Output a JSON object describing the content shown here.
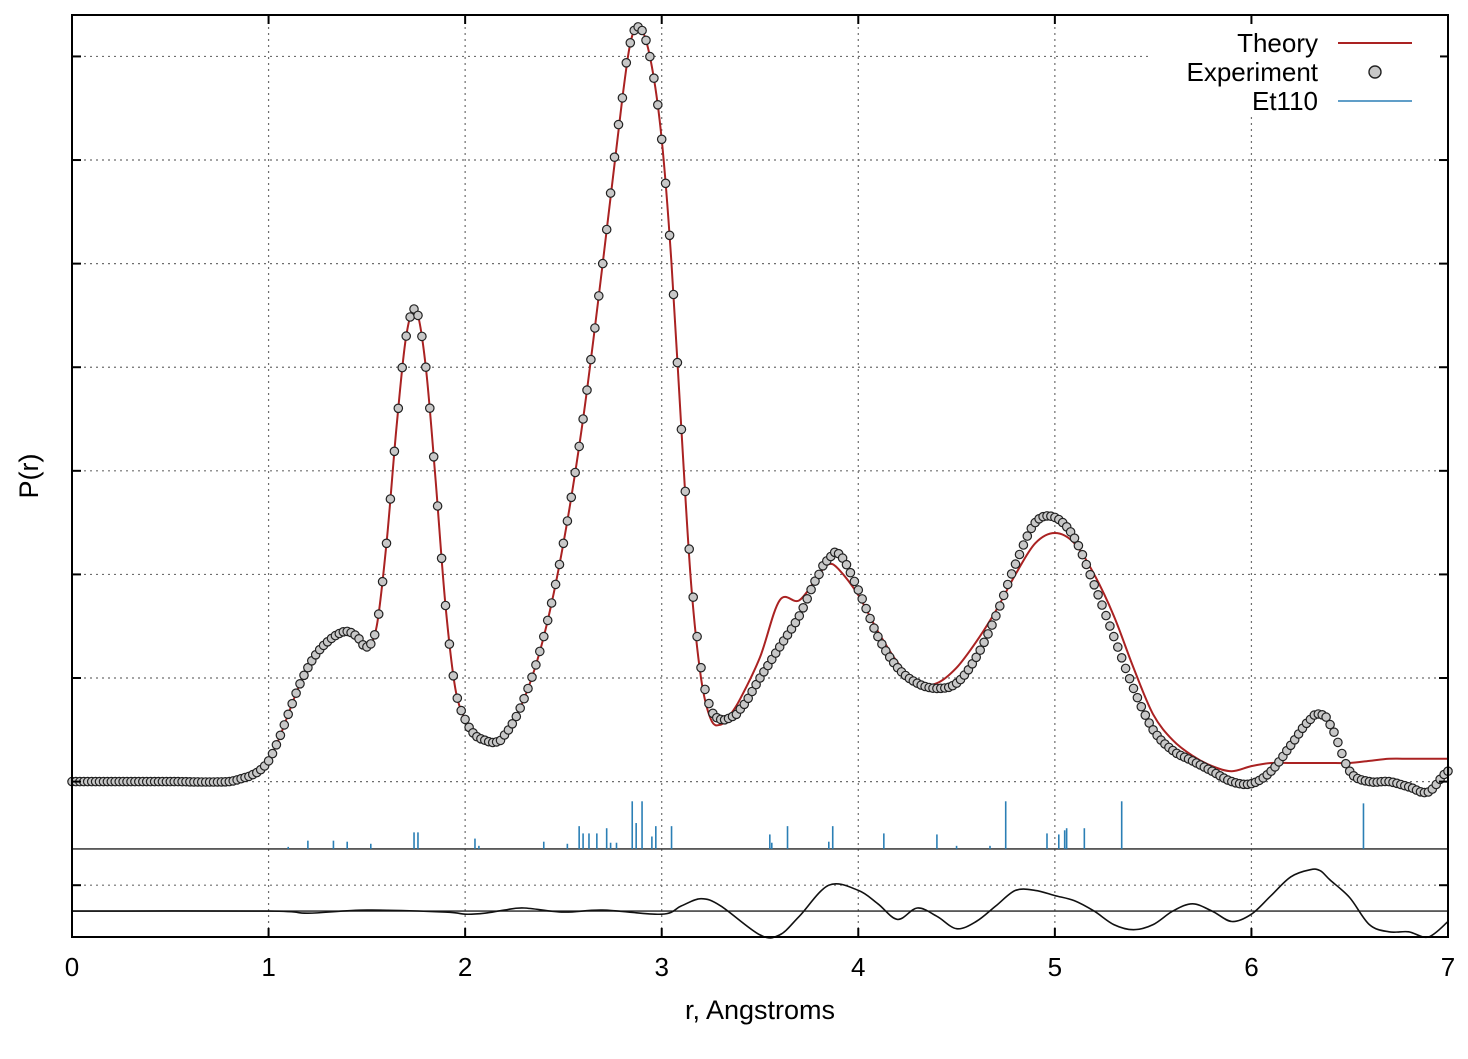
{
  "chart_data": {
    "type": "line",
    "title": "",
    "xlabel": "r, Angstroms",
    "ylabel": "P(r)",
    "xlim": [
      0,
      7
    ],
    "ylim": [
      -0.5,
      8.4
    ],
    "x_ticks": [
      0,
      1,
      2,
      3,
      4,
      5,
      6,
      7
    ],
    "y_ticks": [
      0,
      1,
      2,
      3,
      4,
      5,
      6,
      7,
      8
    ],
    "y_tick_labels_shown": false,
    "grid": true,
    "legend_position": "top-right",
    "legend": [
      {
        "label": "Theory",
        "style": "line",
        "color": "#aa2222"
      },
      {
        "label": "Experiment",
        "style": "marker",
        "color": "#c8c8c8"
      },
      {
        "label": "Et110",
        "style": "line",
        "color": "#2b7fb5"
      }
    ],
    "colors": {
      "theory": "#aa2222",
      "experiment_fill": "#c8c8c8",
      "experiment_edge": "#222222",
      "sticks": "#2b7fb5",
      "difference": "#111111"
    },
    "series": [
      {
        "name": "Experiment",
        "x": [
          0,
          0.5,
          0.8,
          0.9,
          0.95,
          1.0,
          1.05,
          1.1,
          1.15,
          1.2,
          1.25,
          1.3,
          1.35,
          1.4,
          1.45,
          1.5,
          1.55,
          1.6,
          1.65,
          1.7,
          1.75,
          1.8,
          1.85,
          1.9,
          1.95,
          2.0,
          2.05,
          2.1,
          2.15,
          2.2,
          2.3,
          2.4,
          2.5,
          2.6,
          2.7,
          2.8,
          2.85,
          2.9,
          2.95,
          3.0,
          3.05,
          3.1,
          3.15,
          3.2,
          3.25,
          3.3,
          3.35,
          3.4,
          3.5,
          3.6,
          3.7,
          3.8,
          3.85,
          3.9,
          4.0,
          4.1,
          4.2,
          4.3,
          4.4,
          4.5,
          4.6,
          4.7,
          4.8,
          4.9,
          5.0,
          5.1,
          5.2,
          5.3,
          5.4,
          5.5,
          5.6,
          5.7,
          5.8,
          5.9,
          6.0,
          6.1,
          6.2,
          6.3,
          6.35,
          6.4,
          6.5,
          6.6,
          6.7,
          6.8,
          6.9,
          7.0
        ],
        "y": [
          1.0,
          1.0,
          1.0,
          1.05,
          1.1,
          1.2,
          1.4,
          1.65,
          1.9,
          2.1,
          2.25,
          2.35,
          2.42,
          2.45,
          2.4,
          2.3,
          2.5,
          3.3,
          4.4,
          5.3,
          5.55,
          5.0,
          3.9,
          2.7,
          1.9,
          1.6,
          1.45,
          1.4,
          1.38,
          1.45,
          1.8,
          2.4,
          3.3,
          4.5,
          6.0,
          7.6,
          8.2,
          8.25,
          7.9,
          7.2,
          6.0,
          4.4,
          3.0,
          2.1,
          1.7,
          1.6,
          1.62,
          1.7,
          2.0,
          2.3,
          2.6,
          3.0,
          3.15,
          3.2,
          2.85,
          2.4,
          2.1,
          1.95,
          1.9,
          1.95,
          2.2,
          2.6,
          3.1,
          3.5,
          3.55,
          3.35,
          2.9,
          2.4,
          1.9,
          1.5,
          1.3,
          1.2,
          1.1,
          1.0,
          0.98,
          1.1,
          1.35,
          1.6,
          1.65,
          1.55,
          1.1,
          1.0,
          1.0,
          0.95,
          0.9,
          1.1
        ]
      },
      {
        "name": "Theory",
        "x": [
          0,
          0.5,
          0.8,
          0.9,
          0.95,
          1.0,
          1.05,
          1.1,
          1.15,
          1.2,
          1.25,
          1.3,
          1.35,
          1.4,
          1.45,
          1.5,
          1.55,
          1.6,
          1.65,
          1.7,
          1.75,
          1.8,
          1.85,
          1.9,
          1.95,
          2.0,
          2.05,
          2.1,
          2.15,
          2.2,
          2.3,
          2.4,
          2.5,
          2.6,
          2.7,
          2.8,
          2.85,
          2.9,
          2.95,
          3.0,
          3.05,
          3.1,
          3.15,
          3.2,
          3.25,
          3.3,
          3.35,
          3.4,
          3.5,
          3.6,
          3.7,
          3.8,
          3.85,
          3.9,
          4.0,
          4.1,
          4.2,
          4.3,
          4.4,
          4.5,
          4.6,
          4.7,
          4.8,
          4.9,
          5.0,
          5.1,
          5.2,
          5.3,
          5.4,
          5.5,
          5.6,
          5.7,
          5.8,
          5.9,
          6.0,
          6.1,
          6.2,
          6.3,
          6.35,
          6.4,
          6.5,
          6.6,
          6.7,
          6.8,
          6.9,
          7.0
        ],
        "y": [
          1.0,
          1.0,
          1.0,
          1.05,
          1.1,
          1.2,
          1.4,
          1.65,
          1.9,
          2.1,
          2.25,
          2.35,
          2.42,
          2.45,
          2.4,
          2.3,
          2.5,
          3.3,
          4.4,
          5.3,
          5.55,
          5.0,
          3.9,
          2.7,
          1.9,
          1.6,
          1.45,
          1.4,
          1.38,
          1.45,
          1.8,
          2.4,
          3.3,
          4.5,
          6.0,
          7.6,
          8.2,
          8.25,
          7.9,
          7.2,
          6.0,
          4.4,
          2.9,
          2.0,
          1.6,
          1.55,
          1.65,
          1.8,
          2.2,
          2.75,
          2.75,
          3.0,
          3.1,
          3.05,
          2.8,
          2.45,
          2.15,
          1.95,
          1.95,
          2.1,
          2.35,
          2.65,
          3.0,
          3.3,
          3.4,
          3.3,
          3.0,
          2.6,
          2.1,
          1.65,
          1.4,
          1.25,
          1.15,
          1.1,
          1.15,
          1.18,
          1.18,
          1.18,
          1.18,
          1.18,
          1.18,
          1.2,
          1.22,
          1.22,
          1.22,
          1.22
        ]
      },
      {
        "name": "Difference",
        "x": [
          0,
          1.0,
          1.2,
          1.5,
          1.9,
          2.0,
          2.1,
          2.2,
          2.3,
          2.5,
          2.7,
          3.0,
          3.1,
          3.2,
          3.3,
          3.5,
          3.6,
          3.7,
          3.85,
          4.0,
          4.1,
          4.2,
          4.3,
          4.4,
          4.5,
          4.6,
          4.7,
          4.8,
          4.9,
          5.0,
          5.1,
          5.2,
          5.3,
          5.4,
          5.5,
          5.6,
          5.7,
          5.8,
          5.9,
          6.0,
          6.1,
          6.2,
          6.3,
          6.35,
          6.4,
          6.5,
          6.6,
          6.7,
          6.8,
          6.9,
          7.0
        ],
        "y": [
          -0.25,
          -0.25,
          -0.27,
          -0.24,
          -0.26,
          -0.28,
          -0.27,
          -0.24,
          -0.22,
          -0.26,
          -0.24,
          -0.28,
          -0.2,
          -0.13,
          -0.2,
          -0.48,
          -0.48,
          -0.3,
          0.0,
          -0.05,
          -0.18,
          -0.33,
          -0.22,
          -0.3,
          -0.42,
          -0.35,
          -0.2,
          -0.05,
          -0.05,
          -0.1,
          -0.15,
          -0.25,
          -0.38,
          -0.43,
          -0.38,
          -0.25,
          -0.18,
          -0.25,
          -0.35,
          -0.28,
          -0.1,
          0.08,
          0.15,
          0.14,
          0.05,
          -0.12,
          -0.38,
          -0.45,
          -0.45,
          -0.5,
          -0.35
        ]
      }
    ],
    "difference_baseline_y": -0.25,
    "stick_baseline_y": 0.35,
    "sticks": {
      "name": "Et110",
      "r": [
        1.1,
        1.2,
        1.33,
        1.4,
        1.52,
        1.74,
        1.76,
        2.05,
        2.07,
        2.4,
        2.52,
        2.58,
        2.6,
        2.63,
        2.67,
        2.72,
        2.74,
        2.77,
        2.85,
        2.87,
        2.9,
        2.95,
        2.97,
        3.05,
        3.55,
        3.56,
        3.64,
        3.85,
        3.87,
        4.13,
        4.4,
        4.5,
        4.67,
        4.75,
        4.96,
        5.02,
        5.05,
        5.06,
        5.15,
        5.34,
        6.57
      ],
      "h": [
        0.02,
        0.08,
        0.08,
        0.07,
        0.05,
        0.16,
        0.16,
        0.1,
        0.03,
        0.07,
        0.05,
        0.22,
        0.15,
        0.15,
        0.15,
        0.2,
        0.06,
        0.06,
        0.46,
        0.25,
        0.46,
        0.12,
        0.22,
        0.22,
        0.14,
        0.06,
        0.22,
        0.07,
        0.22,
        0.15,
        0.14,
        0.03,
        0.03,
        0.46,
        0.15,
        0.14,
        0.18,
        0.2,
        0.2,
        0.46,
        0.44
      ]
    }
  }
}
